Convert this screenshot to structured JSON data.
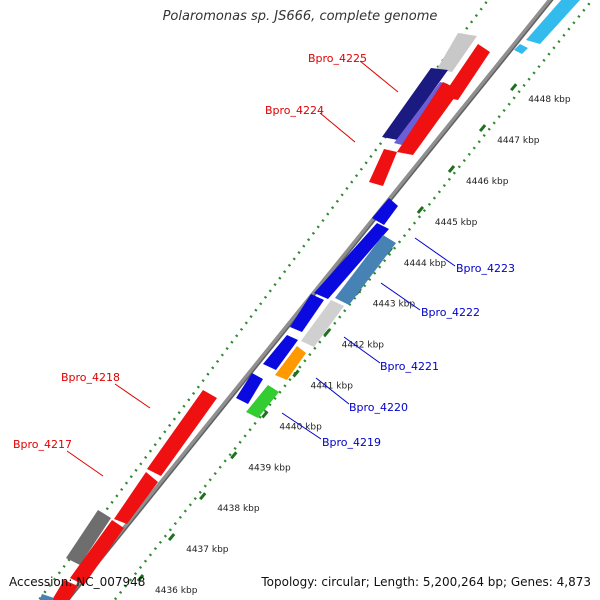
{
  "title": "Polaromonas sp. JS666, complete genome",
  "footer": {
    "accession": "Accession: NC_007948",
    "summary": "Topology: circular; Length: 5,200,264 bp; Genes: 4,873"
  },
  "colors": {
    "backbone": "#8a8a8a",
    "dots": "#2e8b2e",
    "label_red": "#e00000",
    "label_blue": "#0000cc"
  },
  "kbp_ticks": [
    "4436 kbp",
    "4437 kbp",
    "4438 kbp",
    "4439 kbp",
    "4440 kbp",
    "4441 kbp",
    "4442 kbp",
    "4443 kbp",
    "4444 kbp",
    "4445 kbp",
    "4446 kbp",
    "4447 kbp",
    "4448 kbp"
  ],
  "gene_labels": [
    {
      "id": "Bpro_4225",
      "color": "red",
      "side": "left"
    },
    {
      "id": "Bpro_4224",
      "color": "red",
      "side": "left"
    },
    {
      "id": "Bpro_4218",
      "color": "red",
      "side": "left"
    },
    {
      "id": "Bpro_4217",
      "color": "red",
      "side": "left"
    },
    {
      "id": "Bpro_4223",
      "color": "blue",
      "side": "right"
    },
    {
      "id": "Bpro_4222",
      "color": "blue",
      "side": "right"
    },
    {
      "id": "Bpro_4221",
      "color": "blue",
      "side": "right"
    },
    {
      "id": "Bpro_4220",
      "color": "blue",
      "side": "right"
    },
    {
      "id": "Bpro_4219",
      "color": "blue",
      "side": "right"
    }
  ]
}
